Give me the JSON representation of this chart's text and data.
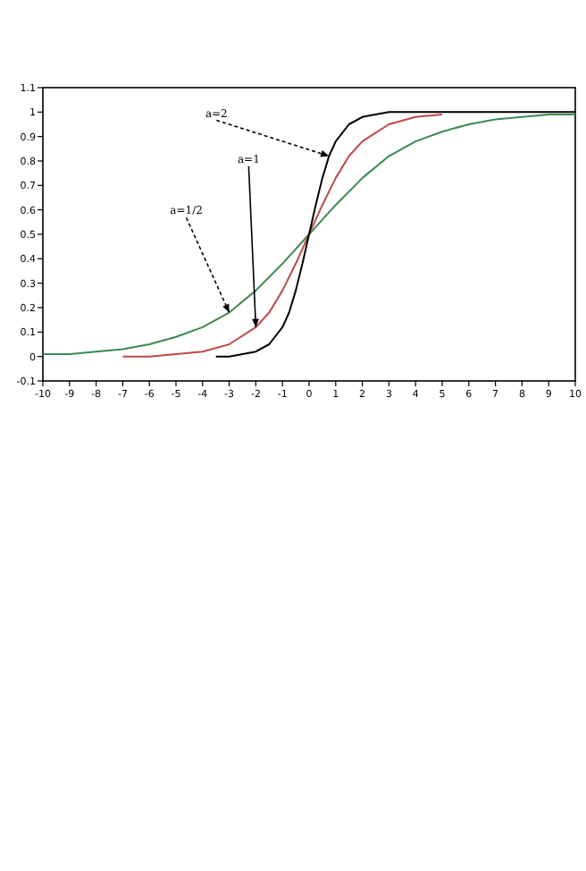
{
  "chart_data": {
    "type": "line",
    "xlim": [
      -10,
      10
    ],
    "xticks": [
      -10,
      -9,
      -8,
      -7,
      -6,
      -5,
      -4,
      -3,
      -2,
      -1,
      0,
      1,
      2,
      3,
      4,
      5,
      6,
      7,
      8,
      9,
      10
    ],
    "ylim": [
      -0.1,
      1.1
    ],
    "yticks": [
      -0.1,
      0,
      0.1,
      0.2,
      0.3,
      0.4,
      0.5,
      0.6,
      0.7,
      0.8,
      0.9,
      1,
      1.1
    ],
    "grid": false,
    "marker": "none",
    "series": [
      {
        "color": "#3a8a50",
        "x": [
          -10,
          -9,
          -8,
          -7,
          -6,
          -5,
          -4,
          -3,
          -2,
          -1,
          0,
          1,
          2,
          3,
          4,
          5,
          6,
          7,
          8,
          9,
          10
        ],
        "values": [
          0.01,
          0.01,
          0.02,
          0.03,
          0.05,
          0.08,
          0.12,
          0.18,
          0.27,
          0.38,
          0.5,
          0.62,
          0.73,
          0.82,
          0.88,
          0.92,
          0.95,
          0.97,
          0.98,
          0.99,
          0.99
        ]
      },
      {
        "color": "#c04848",
        "x": [
          -7,
          -6,
          -5,
          -4,
          -3,
          -2,
          -1.5,
          -1,
          -0.5,
          0,
          0.5,
          1,
          1.5,
          2,
          3,
          4,
          5
        ],
        "values": [
          0,
          0,
          0.01,
          0.02,
          0.05,
          0.12,
          0.18,
          0.27,
          0.38,
          0.5,
          0.62,
          0.73,
          0.82,
          0.88,
          0.95,
          0.98,
          0.99
        ]
      },
      {
        "color": "#000000",
        "x": [
          -3.5,
          -3,
          -2,
          -1.5,
          -1,
          -0.75,
          -0.5,
          -0.25,
          0,
          0.25,
          0.5,
          0.75,
          1,
          1.5,
          2,
          3,
          5,
          10
        ],
        "values": [
          0,
          0,
          0.02,
          0.05,
          0.12,
          0.18,
          0.27,
          0.38,
          0.5,
          0.62,
          0.73,
          0.82,
          0.88,
          0.95,
          0.98,
          1,
          1,
          1
        ]
      }
    ],
    "annotations": [
      {
        "text": "a=2",
        "x": 0.75,
        "y": 0.82
      },
      {
        "text": "a=1",
        "x": -2,
        "y": 0.12
      },
      {
        "text": "a=1/2",
        "x": -3,
        "y": 0.18
      }
    ]
  }
}
